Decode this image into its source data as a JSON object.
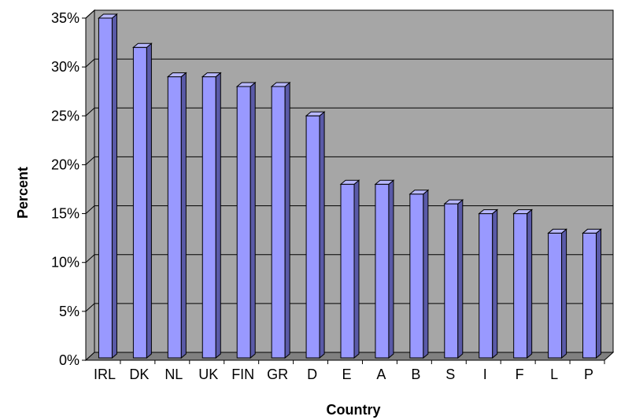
{
  "chart_data": {
    "type": "bar",
    "style": "3d-column",
    "xlabel": "Country",
    "ylabel": "Percent",
    "categories": [
      "IRL",
      "DK",
      "NL",
      "UK",
      "FIN",
      "GR",
      "D",
      "E",
      "A",
      "B",
      "S",
      "I",
      "F",
      "L",
      "P"
    ],
    "values": [
      35,
      32,
      29,
      29,
      28,
      28,
      25,
      18,
      18,
      17,
      16,
      15,
      15,
      13,
      13
    ],
    "ylim": [
      0,
      35
    ],
    "yticks": [
      0,
      5,
      10,
      15,
      20,
      25,
      30,
      35
    ],
    "ytick_labels": [
      "0%",
      "5%",
      "10%",
      "15%",
      "20%",
      "25%",
      "30%",
      "35%"
    ],
    "grid": true,
    "legend": "none",
    "colors": {
      "wall": "#a6a6a6",
      "floor": "#808080",
      "bar_front": "#9999ff",
      "bar_side": "#5a5aa8",
      "bar_top": "#b8b8ff",
      "outline": "#000000"
    }
  }
}
